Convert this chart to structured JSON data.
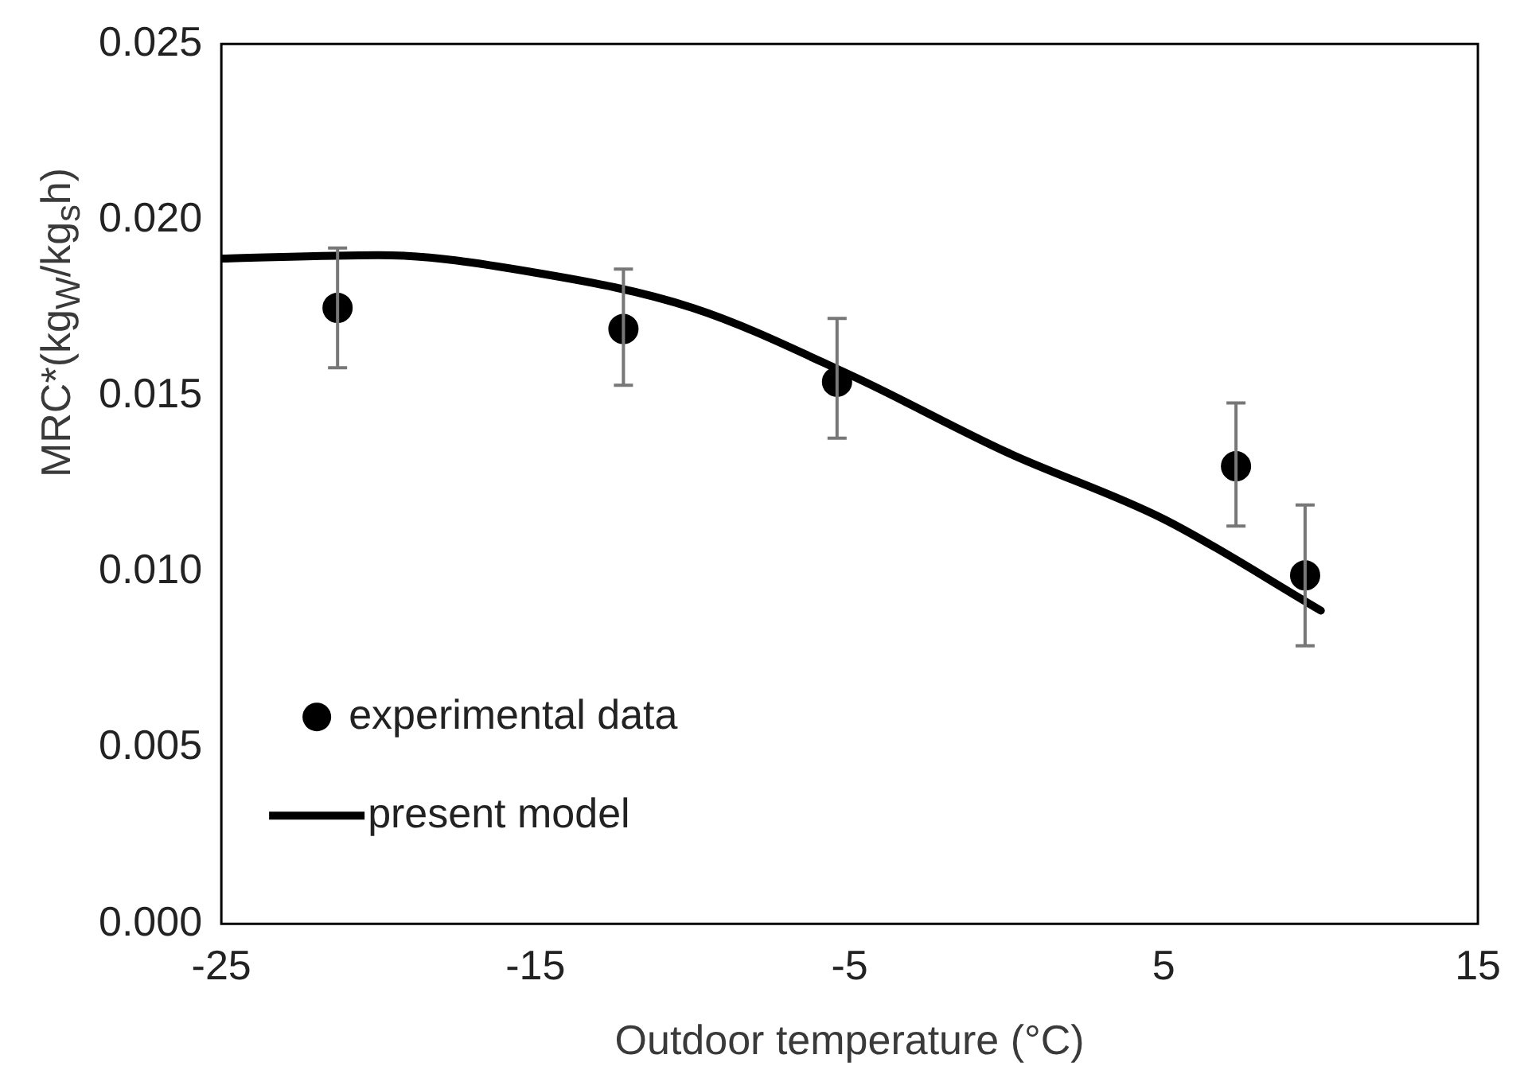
{
  "chart_data": {
    "type": "scatter",
    "xlabel": "Outdoor temperature (°C)",
    "ylabel": "MRC*(kg$_{W}$/kg$_{s}$h)",
    "xlim": [
      -25,
      15
    ],
    "xticks": [
      -25,
      -15,
      -5,
      5,
      15
    ],
    "ylim": [
      0,
      0.025
    ],
    "yticks": [
      {
        "value": 0,
        "label": "0.000"
      },
      {
        "value": 0.005,
        "label": "0.005"
      },
      {
        "value": 0.01,
        "label": "0.010"
      },
      {
        "value": 0.015,
        "label": "0.015"
      },
      {
        "value": 0.02,
        "label": "0.020"
      },
      {
        "value": 0.025,
        "label": "0.025"
      }
    ],
    "grid": false,
    "legend": "bottom left",
    "series": [
      {
        "name": "experimental data",
        "marker": "circle",
        "color": "#000000",
        "x": [
          -21.3,
          -12.2,
          -5.4,
          7.3,
          9.5
        ],
        "values": [
          0.0175,
          0.0169,
          0.0154,
          0.013,
          0.0099
        ],
        "errors": [
          [
            0.0158,
            0.0192
          ],
          [
            0.0153,
            0.0186
          ],
          [
            0.0138,
            0.0172
          ],
          [
            0.0113,
            0.0148
          ],
          [
            0.0079,
            0.0119
          ]
        ]
      },
      {
        "name": "present model",
        "type": "line",
        "marker": "none",
        "line_style": "solid",
        "color": "#000000",
        "x": [
          -25,
          -20,
          -15,
          -10,
          -5,
          0,
          5,
          10
        ],
        "values": [
          0.0189,
          0.019,
          0.0185,
          0.0175,
          0.0156,
          0.0134,
          0.0115,
          0.0089
        ]
      }
    ]
  }
}
